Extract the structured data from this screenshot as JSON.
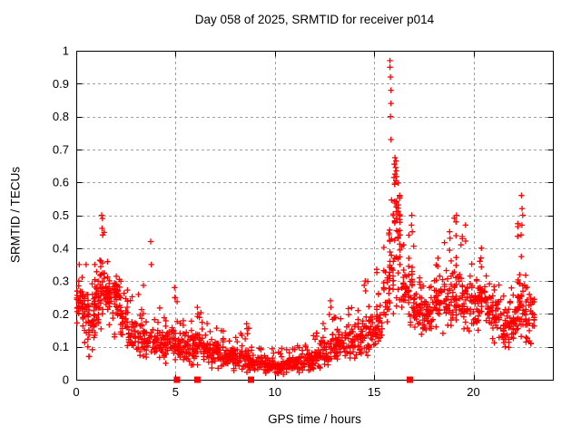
{
  "chart_data": {
    "type": "scatter",
    "title": "Day 058 of 2025, SRMTID for receiver p014",
    "xlabel": "GPS time / hours",
    "ylabel": "SRMTID / TECUs",
    "xlim": [
      0,
      24
    ],
    "ylim": [
      0,
      1
    ],
    "xticks": [
      [
        0,
        "0"
      ],
      [
        5,
        "5"
      ],
      [
        10,
        "10"
      ],
      [
        15,
        "15"
      ],
      [
        20,
        "20"
      ]
    ],
    "yticks": [
      [
        0,
        "0"
      ],
      [
        0.1,
        "0.1"
      ],
      [
        0.2,
        "0.2"
      ],
      [
        0.3,
        "0.3"
      ],
      [
        0.4,
        "0.4"
      ],
      [
        0.5,
        "0.5"
      ],
      [
        0.6,
        "0.6"
      ],
      [
        0.7,
        "0.7"
      ],
      [
        0.8,
        "0.8"
      ],
      [
        0.9,
        "0.9"
      ],
      [
        1,
        "1"
      ]
    ],
    "grid": true,
    "legend": "none",
    "marker": "plus",
    "marker_color": "#ff0000",
    "grid_color": "#a0a0a0",
    "axis_color": "#000000",
    "background_color": "#ffffff",
    "note": "Dense scatter approximated as per-bin density envelopes: [x_start,x_end,y_min,y_max,y_mode,count]; plus explicit outlier points.",
    "series": [
      {
        "name": "srmtid-density-bins",
        "representation": "binned-envelope",
        "bins": [
          [
            0.0,
            0.3,
            0.15,
            0.33,
            0.24,
            30
          ],
          [
            0.3,
            0.6,
            0.07,
            0.35,
            0.2,
            34
          ],
          [
            0.6,
            0.9,
            0.07,
            0.3,
            0.17,
            32
          ],
          [
            0.9,
            1.2,
            0.1,
            0.38,
            0.24,
            34
          ],
          [
            1.2,
            1.45,
            0.15,
            0.46,
            0.28,
            26
          ],
          [
            1.45,
            1.8,
            0.15,
            0.37,
            0.26,
            34
          ],
          [
            1.8,
            2.2,
            0.13,
            0.33,
            0.25,
            36
          ],
          [
            2.2,
            2.6,
            0.1,
            0.3,
            0.19,
            34
          ],
          [
            2.6,
            3.0,
            0.08,
            0.26,
            0.14,
            32
          ],
          [
            3.0,
            3.4,
            0.06,
            0.3,
            0.13,
            30
          ],
          [
            3.4,
            3.9,
            0.05,
            0.25,
            0.12,
            34
          ],
          [
            3.9,
            4.3,
            0.05,
            0.22,
            0.11,
            30
          ],
          [
            4.3,
            4.7,
            0.05,
            0.2,
            0.11,
            30
          ],
          [
            4.7,
            5.1,
            0.05,
            0.28,
            0.12,
            32
          ],
          [
            5.1,
            5.5,
            0.04,
            0.2,
            0.1,
            32
          ],
          [
            5.5,
            5.9,
            0.04,
            0.18,
            0.1,
            30
          ],
          [
            5.9,
            6.3,
            0.04,
            0.22,
            0.11,
            32
          ],
          [
            6.3,
            6.7,
            0.04,
            0.18,
            0.09,
            30
          ],
          [
            6.7,
            7.1,
            0.03,
            0.16,
            0.085,
            32
          ],
          [
            7.1,
            7.5,
            0.03,
            0.17,
            0.08,
            32
          ],
          [
            7.5,
            7.9,
            0.03,
            0.14,
            0.075,
            32
          ],
          [
            7.9,
            8.3,
            0.02,
            0.15,
            0.065,
            32
          ],
          [
            8.3,
            8.7,
            0.02,
            0.17,
            0.06,
            32
          ],
          [
            8.7,
            9.1,
            0.02,
            0.12,
            0.05,
            30
          ],
          [
            9.1,
            9.5,
            0.02,
            0.1,
            0.05,
            32
          ],
          [
            9.5,
            9.9,
            0.015,
            0.1,
            0.045,
            32
          ],
          [
            9.9,
            10.3,
            0.015,
            0.09,
            0.04,
            32
          ],
          [
            10.3,
            10.7,
            0.015,
            0.1,
            0.045,
            32
          ],
          [
            10.7,
            11.1,
            0.02,
            0.1,
            0.05,
            32
          ],
          [
            11.1,
            11.5,
            0.02,
            0.12,
            0.05,
            32
          ],
          [
            11.5,
            11.9,
            0.02,
            0.13,
            0.06,
            32
          ],
          [
            11.9,
            12.3,
            0.03,
            0.15,
            0.07,
            32
          ],
          [
            12.3,
            12.7,
            0.04,
            0.18,
            0.08,
            32
          ],
          [
            12.7,
            13.1,
            0.05,
            0.22,
            0.1,
            32
          ],
          [
            13.1,
            13.5,
            0.05,
            0.22,
            0.11,
            30
          ],
          [
            13.5,
            13.9,
            0.06,
            0.22,
            0.11,
            30
          ],
          [
            13.9,
            14.3,
            0.06,
            0.24,
            0.12,
            30
          ],
          [
            14.3,
            14.7,
            0.07,
            0.3,
            0.13,
            30
          ],
          [
            14.7,
            15.1,
            0.08,
            0.3,
            0.15,
            32
          ],
          [
            15.1,
            15.45,
            0.1,
            0.35,
            0.18,
            28
          ],
          [
            15.45,
            15.75,
            0.12,
            0.45,
            0.25,
            26
          ],
          [
            15.75,
            16.0,
            0.18,
            0.58,
            0.34,
            28
          ],
          [
            16.0,
            16.35,
            0.22,
            0.68,
            0.48,
            44
          ],
          [
            16.35,
            16.7,
            0.18,
            0.42,
            0.27,
            28
          ],
          [
            16.7,
            17.0,
            0.16,
            0.5,
            0.25,
            30
          ],
          [
            17.0,
            17.5,
            0.13,
            0.33,
            0.21,
            40
          ],
          [
            17.5,
            18.0,
            0.12,
            0.3,
            0.19,
            40
          ],
          [
            18.0,
            18.5,
            0.14,
            0.38,
            0.23,
            38
          ],
          [
            18.5,
            19.0,
            0.15,
            0.45,
            0.25,
            38
          ],
          [
            19.0,
            19.4,
            0.15,
            0.5,
            0.27,
            32
          ],
          [
            19.4,
            19.8,
            0.13,
            0.45,
            0.24,
            32
          ],
          [
            19.8,
            20.2,
            0.13,
            0.38,
            0.23,
            32
          ],
          [
            20.2,
            20.6,
            0.12,
            0.4,
            0.24,
            32
          ],
          [
            20.6,
            21.0,
            0.12,
            0.33,
            0.21,
            32
          ],
          [
            21.0,
            21.4,
            0.1,
            0.3,
            0.19,
            32
          ],
          [
            21.4,
            21.8,
            0.09,
            0.28,
            0.16,
            32
          ],
          [
            21.8,
            22.2,
            0.1,
            0.33,
            0.18,
            34
          ],
          [
            22.2,
            22.6,
            0.12,
            0.52,
            0.24,
            36
          ],
          [
            22.6,
            23.1,
            0.1,
            0.33,
            0.19,
            40
          ]
        ]
      },
      {
        "name": "srmtid-peak-points",
        "representation": "points",
        "points": [
          [
            0.15,
            0.35
          ],
          [
            0.5,
            0.35
          ],
          [
            1.28,
            0.5
          ],
          [
            1.32,
            0.49
          ],
          [
            1.3,
            0.46
          ],
          [
            1.33,
            0.44
          ],
          [
            3.75,
            0.42
          ],
          [
            3.78,
            0.35
          ],
          [
            4.95,
            0.28
          ],
          [
            4.97,
            0.25
          ],
          [
            6.1,
            0.22
          ],
          [
            6.12,
            0.2
          ],
          [
            8.58,
            0.17
          ],
          [
            8.6,
            0.155
          ],
          [
            8.62,
            0.14
          ],
          [
            12.8,
            0.24
          ],
          [
            12.82,
            0.22
          ],
          [
            14.55,
            0.3
          ],
          [
            14.57,
            0.27
          ],
          [
            15.8,
            0.97
          ],
          [
            15.8,
            0.95
          ],
          [
            15.82,
            0.92
          ],
          [
            15.85,
            0.88
          ],
          [
            15.85,
            0.84
          ],
          [
            15.82,
            0.8
          ],
          [
            15.85,
            0.73
          ],
          [
            16.05,
            0.675
          ],
          [
            16.1,
            0.665
          ],
          [
            16.02,
            0.655
          ],
          [
            16.08,
            0.645
          ],
          [
            16.12,
            0.635
          ],
          [
            16.05,
            0.625
          ],
          [
            16.0,
            0.615
          ],
          [
            16.1,
            0.605
          ],
          [
            16.03,
            0.595
          ],
          [
            16.9,
            0.5
          ],
          [
            16.88,
            0.47
          ],
          [
            16.92,
            0.45
          ],
          [
            18.8,
            0.45
          ],
          [
            18.82,
            0.43
          ],
          [
            19.15,
            0.5
          ],
          [
            19.12,
            0.48
          ],
          [
            19.6,
            0.47
          ],
          [
            20.4,
            0.4
          ],
          [
            20.38,
            0.37
          ],
          [
            22.42,
            0.56
          ],
          [
            22.45,
            0.52
          ],
          [
            22.48,
            0.5
          ],
          [
            22.44,
            0.47
          ],
          [
            22.4,
            0.44
          ]
        ]
      },
      {
        "name": "zero-flag-squares",
        "representation": "points",
        "marker": "filled-square",
        "points": [
          [
            5.07,
            0
          ],
          [
            6.1,
            0
          ],
          [
            8.8,
            0
          ],
          [
            16.8,
            0
          ]
        ]
      }
    ]
  }
}
